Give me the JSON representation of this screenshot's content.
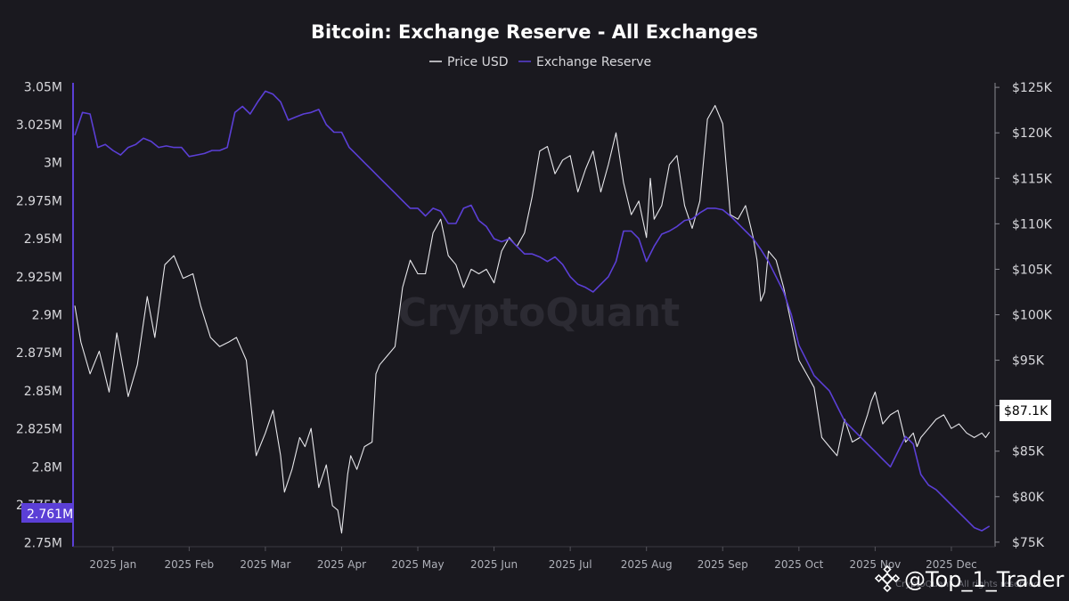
{
  "chart_data": {
    "type": "line",
    "title": "Bitcoin: Exchange Reserve - All Exchanges",
    "legend": [
      {
        "name": "Price USD",
        "color": "#e6e6ea"
      },
      {
        "name": "Exchange Reserve",
        "color": "#5b3fd6"
      }
    ],
    "legend_position": "top-center",
    "x_ticks": [
      "2025 Jan",
      "2025 Feb",
      "2025 Mar",
      "2025 Apr",
      "2025 May",
      "2025 Jun",
      "2025 Jul",
      "2025 Aug",
      "2025 Sep",
      "2025 Oct",
      "2025 Nov",
      "2025 Dec"
    ],
    "xlim": [
      0,
      12.05
    ],
    "y_left": {
      "label": "Exchange Reserve",
      "ylim": [
        2.7475,
        3.0525
      ],
      "ticks": [
        {
          "value": 3.05,
          "label": "3.05M"
        },
        {
          "value": 3.025,
          "label": "3.025M"
        },
        {
          "value": 3.0,
          "label": "3M"
        },
        {
          "value": 2.975,
          "label": "2.975M"
        },
        {
          "value": 2.95,
          "label": "2.95M"
        },
        {
          "value": 2.925,
          "label": "2.925M"
        },
        {
          "value": 2.9,
          "label": "2.9M"
        },
        {
          "value": 2.875,
          "label": "2.875M"
        },
        {
          "value": 2.85,
          "label": "2.85M"
        },
        {
          "value": 2.825,
          "label": "2.825M"
        },
        {
          "value": 2.8,
          "label": "2.8M"
        },
        {
          "value": 2.775,
          "label": "2.775M"
        },
        {
          "value": 2.75,
          "label": "2.75M"
        }
      ]
    },
    "y_right": {
      "label": "Price USD",
      "ylim": [
        74500,
        125500
      ],
      "ticks": [
        {
          "value": 125000,
          "label": "$125K"
        },
        {
          "value": 120000,
          "label": "$120K"
        },
        {
          "value": 115000,
          "label": "$115K"
        },
        {
          "value": 110000,
          "label": "$110K"
        },
        {
          "value": 105000,
          "label": "$105K"
        },
        {
          "value": 100000,
          "label": "$100K"
        },
        {
          "value": 95000,
          "label": "$95K"
        },
        {
          "value": 90000,
          "label": "$90K"
        },
        {
          "value": 85000,
          "label": "$85K"
        },
        {
          "value": 80000,
          "label": "$80K"
        },
        {
          "value": 75000,
          "label": "$75K"
        }
      ]
    },
    "series": [
      {
        "name": "Price USD",
        "axis": "right",
        "color": "#e6e6ea",
        "x": [
          0.0,
          0.08,
          0.2,
          0.32,
          0.45,
          0.55,
          0.7,
          0.82,
          0.95,
          1.05,
          1.18,
          1.3,
          1.42,
          1.55,
          1.65,
          1.78,
          1.9,
          2.02,
          2.12,
          2.25,
          2.38,
          2.5,
          2.6,
          2.7,
          2.75,
          2.85,
          2.95,
          3.02,
          3.1,
          3.2,
          3.3,
          3.38,
          3.45,
          3.5,
          3.58,
          3.62,
          3.7,
          3.8,
          3.9,
          3.95,
          4.0,
          4.1,
          4.2,
          4.3,
          4.4,
          4.5,
          4.6,
          4.7,
          4.8,
          4.9,
          5.0,
          5.1,
          5.2,
          5.3,
          5.4,
          5.5,
          5.6,
          5.7,
          5.8,
          5.9,
          6.0,
          6.1,
          6.2,
          6.3,
          6.4,
          6.5,
          6.6,
          6.7,
          6.8,
          6.9,
          7.0,
          7.1,
          7.2,
          7.3,
          7.4,
          7.5,
          7.55,
          7.6,
          7.7,
          7.8,
          7.9,
          8.0,
          8.1,
          8.2,
          8.3,
          8.4,
          8.5,
          8.6,
          8.7,
          8.8,
          8.9,
          8.95,
          9.0,
          9.05,
          9.1,
          9.2,
          9.3,
          9.4,
          9.5,
          9.6,
          9.7,
          9.8,
          9.9,
          10.0,
          10.1,
          10.2,
          10.3,
          10.4,
          10.45,
          10.5,
          10.6,
          10.7,
          10.8,
          10.9,
          11.0,
          11.05,
          11.1,
          11.2,
          11.3,
          11.4,
          11.5,
          11.6,
          11.7,
          11.8,
          11.9,
          11.95,
          12.0
        ],
        "values": [
          101000,
          97000,
          93500,
          96000,
          91500,
          98000,
          91000,
          94500,
          102000,
          97500,
          105500,
          106500,
          104000,
          104500,
          101000,
          97500,
          96500,
          97000,
          97500,
          95000,
          84500,
          87000,
          89500,
          84500,
          80500,
          83000,
          86500,
          85500,
          87500,
          81000,
          83500,
          79000,
          78500,
          76000,
          82500,
          84500,
          83000,
          85500,
          86000,
          93500,
          94500,
          95500,
          96500,
          103000,
          106000,
          104500,
          104500,
          109000,
          110500,
          106500,
          105500,
          103000,
          105000,
          104500,
          105000,
          103500,
          107000,
          108500,
          107500,
          109000,
          113000,
          118000,
          118500,
          115500,
          117000,
          117500,
          113500,
          116000,
          118000,
          113500,
          116500,
          120000,
          114500,
          111000,
          112500,
          108500,
          115000,
          110500,
          112000,
          116500,
          117500,
          112000,
          109500,
          112500,
          121500,
          123000,
          121000,
          111000,
          110500,
          112000,
          108500,
          106000,
          101500,
          102500,
          107000,
          106000,
          103000,
          99000,
          95000,
          93500,
          92000,
          86500,
          85500,
          84500,
          88500,
          86000,
          86500,
          89000,
          90500,
          91500,
          88000,
          89000,
          89500,
          86000,
          87000,
          85500,
          86500,
          87500,
          88500,
          89000,
          87500,
          88000,
          87000,
          86500,
          87000,
          86500,
          87100
        ]
      },
      {
        "name": "Exchange Reserve",
        "axis": "left",
        "color": "#5b3fd6",
        "x": [
          0.0,
          0.1,
          0.2,
          0.3,
          0.4,
          0.5,
          0.6,
          0.7,
          0.8,
          0.9,
          1.0,
          1.1,
          1.2,
          1.3,
          1.4,
          1.5,
          1.6,
          1.7,
          1.8,
          1.9,
          2.0,
          2.1,
          2.2,
          2.3,
          2.4,
          2.5,
          2.6,
          2.7,
          2.8,
          2.9,
          3.0,
          3.1,
          3.2,
          3.3,
          3.4,
          3.5,
          3.6,
          3.7,
          3.8,
          3.9,
          4.0,
          4.1,
          4.2,
          4.3,
          4.4,
          4.5,
          4.6,
          4.7,
          4.8,
          4.9,
          5.0,
          5.1,
          5.2,
          5.3,
          5.4,
          5.5,
          5.6,
          5.7,
          5.8,
          5.9,
          6.0,
          6.1,
          6.2,
          6.3,
          6.4,
          6.5,
          6.6,
          6.7,
          6.8,
          6.9,
          7.0,
          7.1,
          7.2,
          7.3,
          7.4,
          7.5,
          7.6,
          7.7,
          7.8,
          7.9,
          8.0,
          8.1,
          8.2,
          8.3,
          8.4,
          8.5,
          8.6,
          8.7,
          8.8,
          8.9,
          9.0,
          9.1,
          9.2,
          9.3,
          9.4,
          9.5,
          9.6,
          9.7,
          9.8,
          9.9,
          10.0,
          10.1,
          10.2,
          10.3,
          10.4,
          10.5,
          10.6,
          10.7,
          10.8,
          10.9,
          11.0,
          11.1,
          11.2,
          11.3,
          11.4,
          11.5,
          11.6,
          11.7,
          11.8,
          11.9,
          12.0
        ],
        "values": [
          3.018,
          3.033,
          3.032,
          3.01,
          3.012,
          3.008,
          3.005,
          3.01,
          3.012,
          3.016,
          3.014,
          3.01,
          3.011,
          3.01,
          3.01,
          3.004,
          3.005,
          3.006,
          3.008,
          3.008,
          3.01,
          3.033,
          3.037,
          3.032,
          3.04,
          3.047,
          3.045,
          3.04,
          3.028,
          3.03,
          3.032,
          3.033,
          3.035,
          3.025,
          3.02,
          3.02,
          3.01,
          3.005,
          3.0,
          2.995,
          2.99,
          2.985,
          2.98,
          2.975,
          2.97,
          2.97,
          2.965,
          2.97,
          2.968,
          2.96,
          2.96,
          2.97,
          2.972,
          2.962,
          2.958,
          2.95,
          2.948,
          2.95,
          2.945,
          2.94,
          2.94,
          2.938,
          2.935,
          2.938,
          2.933,
          2.925,
          2.92,
          2.918,
          2.915,
          2.92,
          2.925,
          2.935,
          2.955,
          2.955,
          2.95,
          2.935,
          2.945,
          2.953,
          2.955,
          2.958,
          2.962,
          2.963,
          2.967,
          2.97,
          2.97,
          2.969,
          2.965,
          2.96,
          2.955,
          2.95,
          2.943,
          2.935,
          2.925,
          2.915,
          2.9,
          2.88,
          2.87,
          2.86,
          2.855,
          2.85,
          2.84,
          2.83,
          2.825,
          2.82,
          2.815,
          2.81,
          2.805,
          2.8,
          2.81,
          2.82,
          2.815,
          2.795,
          2.788,
          2.785,
          2.78,
          2.775,
          2.77,
          2.765,
          2.76,
          2.758,
          2.761
        ]
      }
    ],
    "current_values": {
      "reserve_badge": "2.761M",
      "price_badge": "$87.1K"
    },
    "watermark": "CryptoQuant",
    "watermark_small": "CryptoQuant. All rights reserved."
  },
  "overlay": {
    "handle": "@Top_1_Trader"
  }
}
